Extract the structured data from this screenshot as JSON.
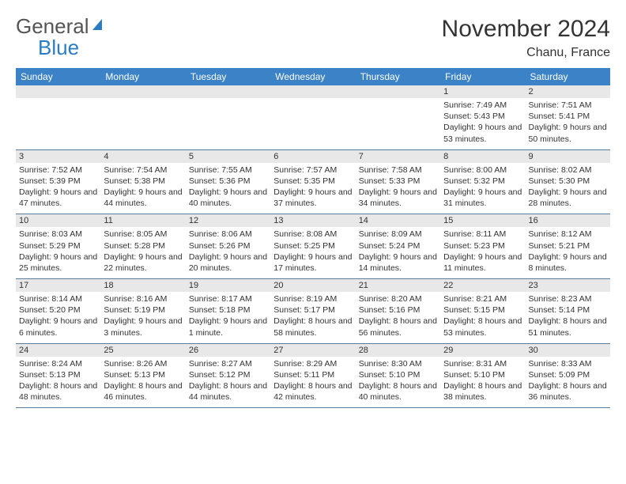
{
  "logo": {
    "text1": "General",
    "text2": "Blue"
  },
  "title": "November 2024",
  "location": "Chanu, France",
  "colors": {
    "header_bg": "#3b82c7",
    "header_text": "#ffffff",
    "daynum_bg": "#e8e8e8",
    "border": "#5a7a9a",
    "logo_gray": "#555555",
    "logo_blue": "#2b7cc4"
  },
  "day_headers": [
    "Sunday",
    "Monday",
    "Tuesday",
    "Wednesday",
    "Thursday",
    "Friday",
    "Saturday"
  ],
  "weeks": [
    [
      null,
      null,
      null,
      null,
      null,
      {
        "n": "1",
        "sr": "7:49 AM",
        "ss": "5:43 PM",
        "dl": "9 hours and 53 minutes."
      },
      {
        "n": "2",
        "sr": "7:51 AM",
        "ss": "5:41 PM",
        "dl": "9 hours and 50 minutes."
      }
    ],
    [
      {
        "n": "3",
        "sr": "7:52 AM",
        "ss": "5:39 PM",
        "dl": "9 hours and 47 minutes."
      },
      {
        "n": "4",
        "sr": "7:54 AM",
        "ss": "5:38 PM",
        "dl": "9 hours and 44 minutes."
      },
      {
        "n": "5",
        "sr": "7:55 AM",
        "ss": "5:36 PM",
        "dl": "9 hours and 40 minutes."
      },
      {
        "n": "6",
        "sr": "7:57 AM",
        "ss": "5:35 PM",
        "dl": "9 hours and 37 minutes."
      },
      {
        "n": "7",
        "sr": "7:58 AM",
        "ss": "5:33 PM",
        "dl": "9 hours and 34 minutes."
      },
      {
        "n": "8",
        "sr": "8:00 AM",
        "ss": "5:32 PM",
        "dl": "9 hours and 31 minutes."
      },
      {
        "n": "9",
        "sr": "8:02 AM",
        "ss": "5:30 PM",
        "dl": "9 hours and 28 minutes."
      }
    ],
    [
      {
        "n": "10",
        "sr": "8:03 AM",
        "ss": "5:29 PM",
        "dl": "9 hours and 25 minutes."
      },
      {
        "n": "11",
        "sr": "8:05 AM",
        "ss": "5:28 PM",
        "dl": "9 hours and 22 minutes."
      },
      {
        "n": "12",
        "sr": "8:06 AM",
        "ss": "5:26 PM",
        "dl": "9 hours and 20 minutes."
      },
      {
        "n": "13",
        "sr": "8:08 AM",
        "ss": "5:25 PM",
        "dl": "9 hours and 17 minutes."
      },
      {
        "n": "14",
        "sr": "8:09 AM",
        "ss": "5:24 PM",
        "dl": "9 hours and 14 minutes."
      },
      {
        "n": "15",
        "sr": "8:11 AM",
        "ss": "5:23 PM",
        "dl": "9 hours and 11 minutes."
      },
      {
        "n": "16",
        "sr": "8:12 AM",
        "ss": "5:21 PM",
        "dl": "9 hours and 8 minutes."
      }
    ],
    [
      {
        "n": "17",
        "sr": "8:14 AM",
        "ss": "5:20 PM",
        "dl": "9 hours and 6 minutes."
      },
      {
        "n": "18",
        "sr": "8:16 AM",
        "ss": "5:19 PM",
        "dl": "9 hours and 3 minutes."
      },
      {
        "n": "19",
        "sr": "8:17 AM",
        "ss": "5:18 PM",
        "dl": "9 hours and 1 minute."
      },
      {
        "n": "20",
        "sr": "8:19 AM",
        "ss": "5:17 PM",
        "dl": "8 hours and 58 minutes."
      },
      {
        "n": "21",
        "sr": "8:20 AM",
        "ss": "5:16 PM",
        "dl": "8 hours and 56 minutes."
      },
      {
        "n": "22",
        "sr": "8:21 AM",
        "ss": "5:15 PM",
        "dl": "8 hours and 53 minutes."
      },
      {
        "n": "23",
        "sr": "8:23 AM",
        "ss": "5:14 PM",
        "dl": "8 hours and 51 minutes."
      }
    ],
    [
      {
        "n": "24",
        "sr": "8:24 AM",
        "ss": "5:13 PM",
        "dl": "8 hours and 48 minutes."
      },
      {
        "n": "25",
        "sr": "8:26 AM",
        "ss": "5:13 PM",
        "dl": "8 hours and 46 minutes."
      },
      {
        "n": "26",
        "sr": "8:27 AM",
        "ss": "5:12 PM",
        "dl": "8 hours and 44 minutes."
      },
      {
        "n": "27",
        "sr": "8:29 AM",
        "ss": "5:11 PM",
        "dl": "8 hours and 42 minutes."
      },
      {
        "n": "28",
        "sr": "8:30 AM",
        "ss": "5:10 PM",
        "dl": "8 hours and 40 minutes."
      },
      {
        "n": "29",
        "sr": "8:31 AM",
        "ss": "5:10 PM",
        "dl": "8 hours and 38 minutes."
      },
      {
        "n": "30",
        "sr": "8:33 AM",
        "ss": "5:09 PM",
        "dl": "8 hours and 36 minutes."
      }
    ]
  ],
  "labels": {
    "sunrise": "Sunrise: ",
    "sunset": "Sunset: ",
    "daylight": "Daylight: "
  }
}
